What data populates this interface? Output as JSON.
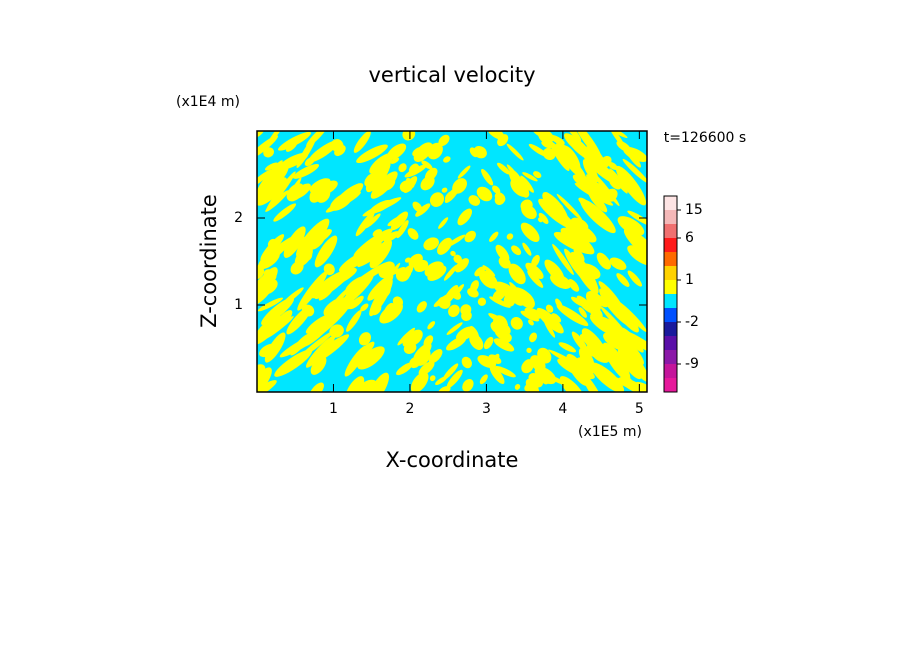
{
  "chart_data": {
    "type": "contour",
    "title": "vertical velocity",
    "x_label": "X-coordinate",
    "y_label": "Z-coordinate",
    "x_unit": "(x1E5 m)",
    "y_unit": "(x1E4 m)",
    "time_label": "t=126600 s",
    "xlim": [
      0,
      5.1
    ],
    "xticks": [
      1,
      2,
      3,
      4,
      5
    ],
    "ylim": [
      0,
      3
    ],
    "yticks": [
      1,
      2
    ],
    "colorbar": {
      "levels": [
        -15,
        -12,
        -9,
        -6,
        -3,
        -2,
        -1,
        0,
        1,
        2,
        3,
        6,
        10,
        15,
        20
      ],
      "colors": [
        "#e6199b",
        "#c4159b",
        "#8b18a8",
        "#5a0fa8",
        "#1a1a9c",
        "#0050ff",
        "#00e6ff",
        "#ffff00",
        "#ffd200",
        "#ff6a00",
        "#ff1a1a",
        "#f07070",
        "#f4b8b8",
        "#fde4e4"
      ],
      "ticks": [
        15,
        6,
        1,
        -2,
        -9
      ]
    }
  }
}
